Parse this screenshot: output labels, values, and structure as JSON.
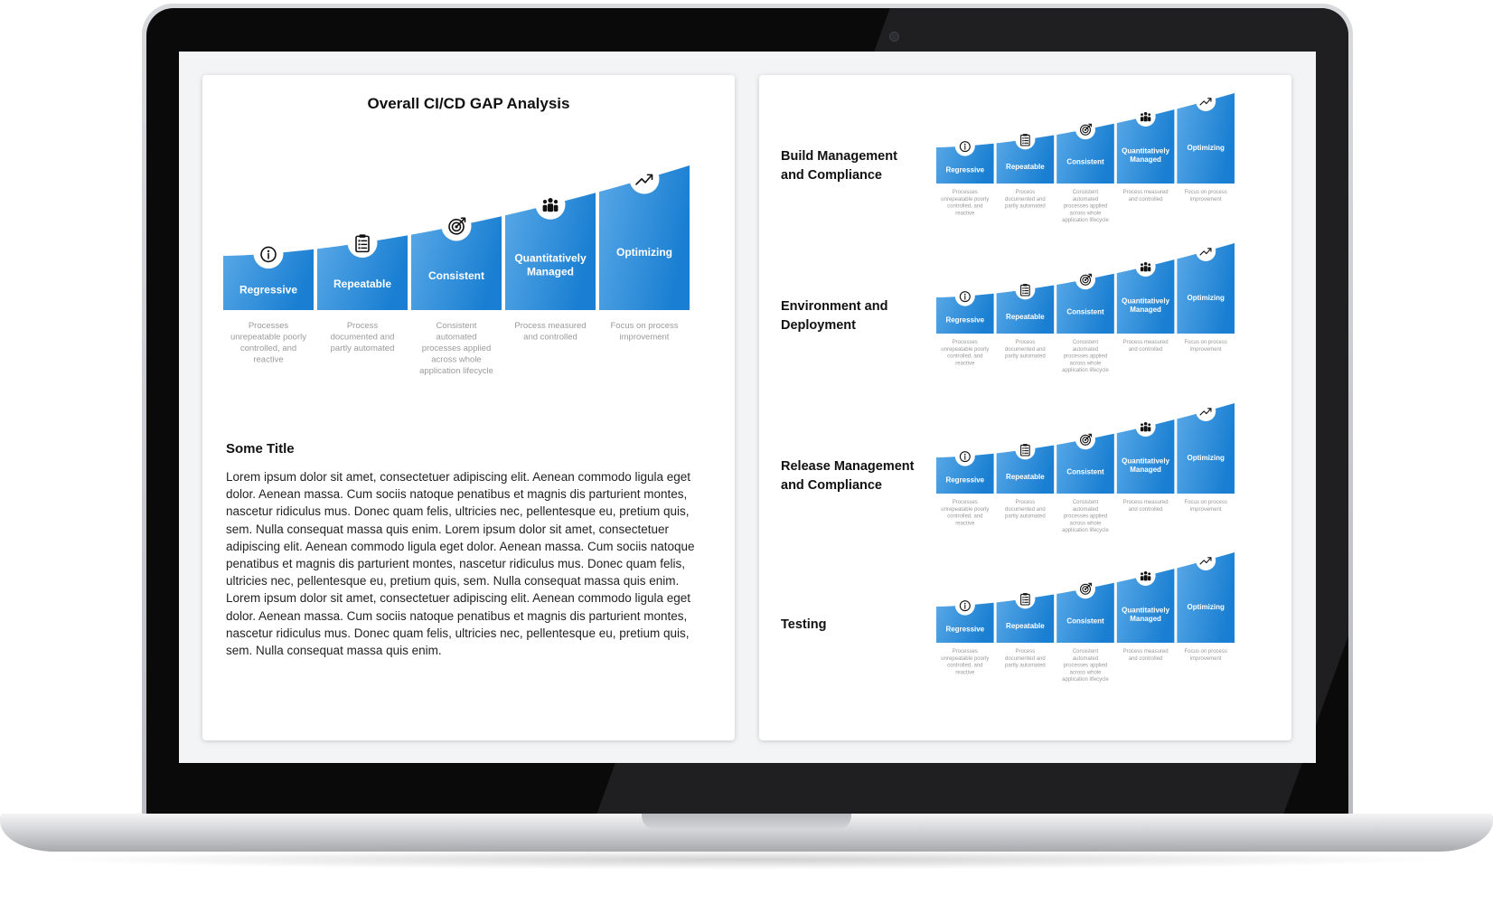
{
  "left_panel": {
    "title": "Overall CI/CD GAP Analysis",
    "section_title": "Some Title",
    "body": "Lorem ipsum dolor sit amet, consectetuer adipiscing elit. Aenean commodo ligula eget dolor. Aenean massa. Cum sociis natoque penatibus et magnis dis parturient montes, nascetur ridiculus mus. Donec quam felis, ultricies nec, pellentesque eu, pretium quis, sem. Nulla consequat massa quis enim. Lorem ipsum dolor sit amet, consectetuer adipiscing elit. Aenean commodo ligula eget dolor. Aenean massa. Cum sociis natoque penatibus et magnis dis parturient montes, nascetur ridiculus mus. Donec quam felis, ultricies nec, pellentesque eu, pretium quis, sem. Nulla consequat massa quis enim. Lorem ipsum dolor sit amet, consectetuer adipiscing elit. Aenean commodo ligula eget dolor. Aenean massa. Cum sociis natoque penatibus et magnis dis parturient montes, nascetur ridiculus mus. Donec quam felis, ultricies nec, pellentesque eu, pretium quis, sem. Nulla consequat massa quis enim."
  },
  "maturity_levels": [
    {
      "name": [
        "Regressive"
      ],
      "icon": "info-icon",
      "description": [
        "Processes",
        "unrepeatable poorly",
        "controlled, and",
        "reactive"
      ]
    },
    {
      "name": [
        "Repeatable"
      ],
      "icon": "clipboard-checklist-icon",
      "description": [
        "Process",
        "documented and",
        "partly automated"
      ]
    },
    {
      "name": [
        "Consistent"
      ],
      "icon": "target-icon",
      "description": [
        "Consistent",
        "automated",
        "processes applied",
        "across whole",
        "application lifecycle"
      ]
    },
    {
      "name": [
        "Quantitatively",
        "Managed"
      ],
      "icon": "team-icon",
      "description": [
        "Process measured",
        "and controlled"
      ]
    },
    {
      "name": [
        "Optimizing"
      ],
      "icon": "trend-up-icon",
      "description": [
        "Focus on process",
        "improvement"
      ]
    }
  ],
  "categories": [
    {
      "label": "Build Management and Compliance"
    },
    {
      "label": "Environment and Deployment"
    },
    {
      "label": "Release Management and Compliance"
    },
    {
      "label": "Testing"
    }
  ],
  "colors": {
    "bar_light": "#58a8e6",
    "bar_dark": "#1a7fd2",
    "description_text": "#9a9a9a"
  }
}
